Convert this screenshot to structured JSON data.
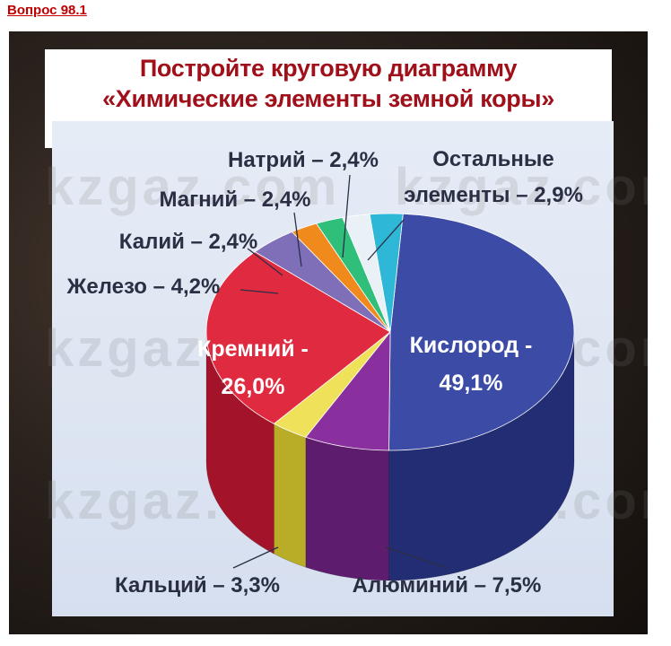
{
  "header": {
    "question": "Вопрос 98.1"
  },
  "title": {
    "line1": "Постройте круговую диаграмму",
    "line2": "«Химические элементы земной коры»"
  },
  "watermark": "kzgaz.com",
  "colors": {
    "title": "#a0101a",
    "header": "#c00000",
    "label": "#2a2f44",
    "inner_label": "#ffffff"
  },
  "chart_data": {
    "type": "pie",
    "style": "3d",
    "slices": [
      {
        "label": "Кислород",
        "value": 49.1,
        "text_line1": "Кислород -",
        "text_line2": "49,1%",
        "color": "#3b4ba6",
        "side": "#232d73",
        "placement": "inside"
      },
      {
        "label": "Алюминий",
        "value": 7.5,
        "text": "Алюминий – 7,5%",
        "color": "#8a2f9e",
        "side": "#5e1c6e",
        "placement": "outside"
      },
      {
        "label": "Кальций",
        "value": 3.3,
        "text": "Кальций – 3,3%",
        "color": "#efe25a",
        "side": "#b9ad28",
        "placement": "outside"
      },
      {
        "label": "Кремний",
        "value": 26.0,
        "text_line1": "Кремний -",
        "text_line2": "26,0%",
        "color": "#e02a3f",
        "side": "#a3142a",
        "placement": "inside"
      },
      {
        "label": "Железо",
        "value": 4.2,
        "text": "Железо – 4,2%",
        "color": "#7f6fb8",
        "side": "#5a4d8c",
        "placement": "outside"
      },
      {
        "label": "Калий",
        "value": 2.4,
        "text": "Калий – 2,4%",
        "color": "#f08a1c",
        "side": "#b35f0a",
        "placement": "outside"
      },
      {
        "label": "Магний",
        "value": 2.4,
        "text": "Магний – 2,4%",
        "color": "#2fbf7a",
        "side": "#1c8a55",
        "placement": "outside"
      },
      {
        "label": "Натрий",
        "value": 2.4,
        "text": "Натрий – 2,4%",
        "color": "#e9f1f7",
        "side": "#b6c3cf",
        "placement": "outside"
      },
      {
        "label": "Остальные элементы",
        "value": 2.9,
        "text_line1": "Остальные",
        "text_line2": "элементы – 2,9%",
        "color": "#2eb7d6",
        "side": "#1a7f98",
        "placement": "outside"
      }
    ]
  }
}
